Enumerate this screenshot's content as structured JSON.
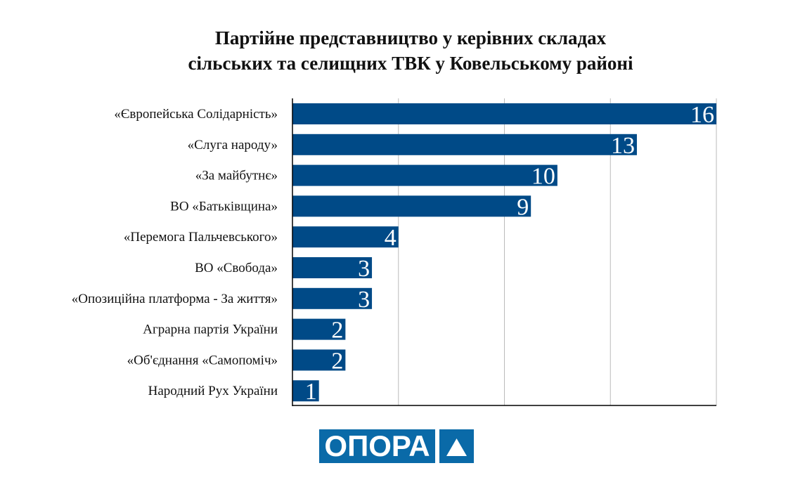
{
  "chart_data": {
    "type": "bar",
    "orientation": "horizontal",
    "title": "Партійне представництво у керівних складах сільських та селищних ТВК у Ковельському районі",
    "title_lines": [
      "Партійне представництво у керівних складах",
      "сільських та селищних ТВК у Ковельському районі"
    ],
    "categories": [
      "«Європейська Солідарність»",
      "«Слуга народу»",
      "«За майбутнє»",
      "ВО «Батьківщина»",
      "«Перемога Пальчевського»",
      "ВО «Свобода»",
      "«Опозиційна платформа - За життя»",
      "Аграрна партія України",
      "«Об'єднання «Самопоміч»",
      "Народний Рух України"
    ],
    "values": [
      16,
      13,
      10,
      9,
      4,
      3,
      3,
      2,
      2,
      1
    ],
    "xlim": [
      0,
      16
    ],
    "gridlines": [
      4,
      8,
      12,
      16
    ],
    "grid": true,
    "bar_color": "#004a87",
    "data_labels": true
  },
  "logo": {
    "text": "ОПОРА",
    "icon": "triangle-icon",
    "color": "#0a6aa8"
  }
}
